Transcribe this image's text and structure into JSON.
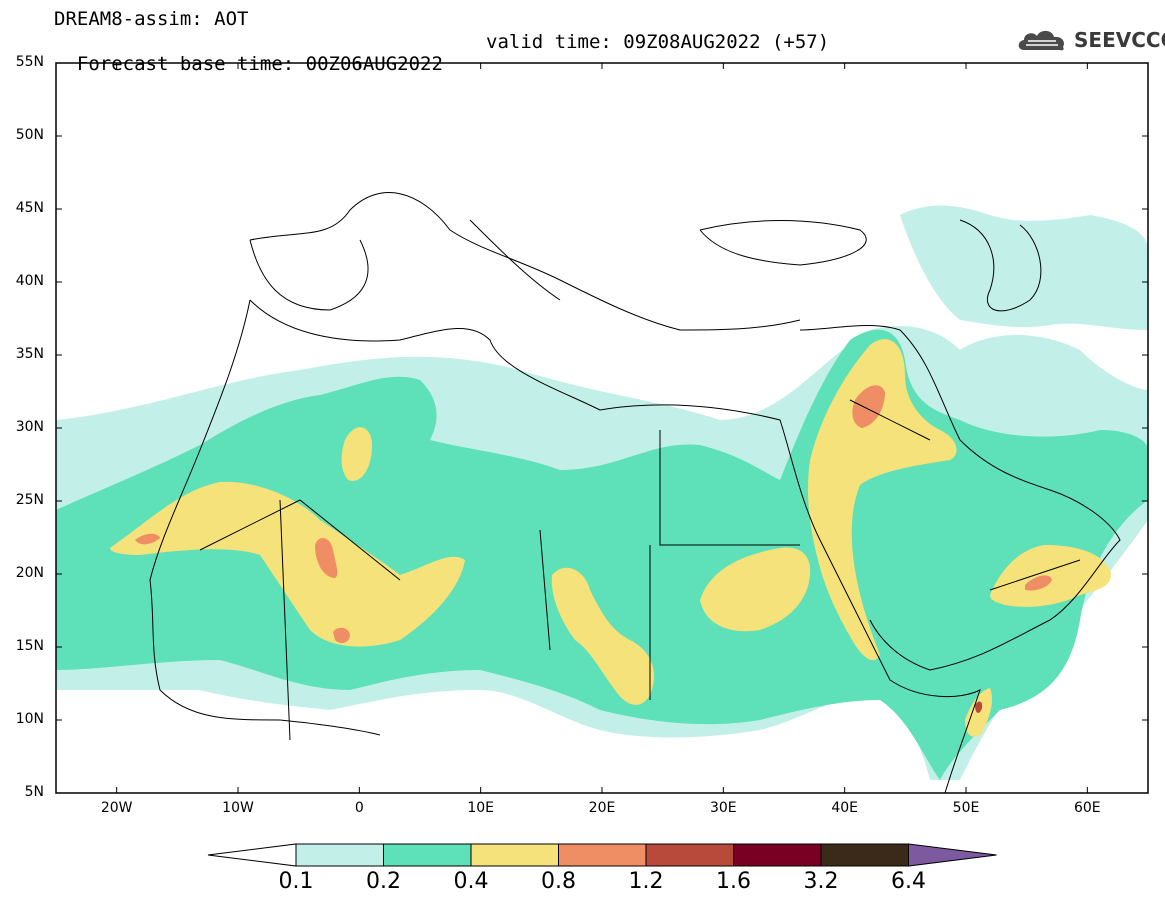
{
  "header": {
    "line1": "DREAM8-assim: AOT",
    "line2": "Forecast base time: 00Z06AUG2022",
    "valid": "valid time: 09Z08AUG2022 (+57)"
  },
  "logo": {
    "text": "SEEVCCC",
    "icon": "cloud-icon"
  },
  "map": {
    "lon_range": [
      -25,
      65
    ],
    "lat_range": [
      5,
      55
    ],
    "lat_labels": [
      "55N",
      "50N",
      "45N",
      "40N",
      "35N",
      "30N",
      "25N",
      "20N",
      "15N",
      "10N",
      "5N"
    ],
    "lon_labels": [
      "20W",
      "10W",
      "0",
      "10E",
      "20E",
      "30E",
      "40E",
      "50E",
      "60E"
    ]
  },
  "colorbar": {
    "levels": [
      "0.1",
      "0.2",
      "0.4",
      "0.8",
      "1.2",
      "1.6",
      "3.2",
      "6.4"
    ],
    "colors": [
      "#c2f0e8",
      "#5ee0b8",
      "#f5e27a",
      "#ef8e64",
      "#b84a3c",
      "#7a0023",
      "#3b2a1a"
    ],
    "under": "#ffffff",
    "over": "#7d5aa0"
  }
}
